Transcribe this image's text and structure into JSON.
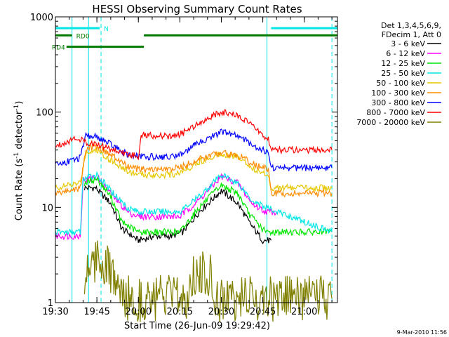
{
  "chart_data": {
    "type": "line",
    "title": "HESSI Observing Summary Count Rates",
    "xlabel": "Start Time (26-Jun-09 19:29:42)",
    "ylabel_pre": "Count Rate (s",
    "ylabel_sup": "-1",
    "ylabel_mid": " detector",
    "ylabel_sup2": "-1",
    "ylabel_post": ")",
    "y_scale": "log",
    "ylim": [
      1,
      1000
    ],
    "xlim_min": [
      1170,
      1272
    ],
    "x_ticks": [
      {
        "m": 1170,
        "label": "19:30"
      },
      {
        "m": 1185,
        "label": "19:45"
      },
      {
        "m": 1200,
        "label": "20:00"
      },
      {
        "m": 1215,
        "label": "20:15"
      },
      {
        "m": 1230,
        "label": "20:30"
      },
      {
        "m": 1245,
        "label": "20:45"
      },
      {
        "m": 1260,
        "label": "21:00"
      }
    ],
    "y_ticks": [
      {
        "v": 1,
        "label": "1"
      },
      {
        "v": 10,
        "label": "10"
      },
      {
        "v": 100,
        "label": "100"
      },
      {
        "v": 1000,
        "label": "1000"
      }
    ],
    "legend_header": [
      "Det 1,3,4,5,6,9,",
      "FDecim 1, Att 0"
    ],
    "timestamp": "9-Mar-2010 11:56",
    "series": [
      {
        "name": "3 - 6 keV",
        "color": "#000000",
        "pts": [
          [
            1180.5,
            16
          ],
          [
            1184.5,
            16
          ],
          [
            1190,
            11
          ],
          [
            1194,
            6
          ],
          [
            1200,
            4.5
          ],
          [
            1206,
            5
          ],
          [
            1212,
            5
          ],
          [
            1216,
            5.5
          ],
          [
            1222,
            9
          ],
          [
            1230,
            15
          ],
          [
            1236,
            11
          ],
          [
            1240,
            7
          ],
          [
            1245,
            4.5
          ],
          [
            1248,
            4.5
          ]
        ]
      },
      {
        "name": "6 - 12 keV",
        "color": "#ff00ff",
        "pts": [
          [
            1170,
            5
          ],
          [
            1179,
            5
          ],
          [
            1180,
            19
          ],
          [
            1185,
            21
          ],
          [
            1190,
            14
          ],
          [
            1196,
            9
          ],
          [
            1200,
            8
          ],
          [
            1215,
            8
          ],
          [
            1222,
            12
          ],
          [
            1230,
            21
          ],
          [
            1236,
            18
          ],
          [
            1241,
            11
          ],
          [
            1246,
            9
          ],
          [
            1250,
            9
          ]
        ]
      },
      {
        "name": "12 - 25 keV",
        "color": "#00e600",
        "pts": [
          [
            1180.5,
            18
          ],
          [
            1185,
            20
          ],
          [
            1190,
            13
          ],
          [
            1194,
            7
          ],
          [
            1200,
            5.5
          ],
          [
            1215,
            5.5
          ],
          [
            1222,
            10
          ],
          [
            1230,
            17
          ],
          [
            1236,
            14
          ],
          [
            1240,
            8.5
          ],
          [
            1246,
            5.5
          ],
          [
            1270,
            5.5
          ]
        ]
      },
      {
        "name": "25 - 50 keV",
        "color": "#00e6e6",
        "pts": [
          [
            1170,
            5.5
          ],
          [
            1179,
            5.5
          ],
          [
            1180,
            20
          ],
          [
            1185,
            22
          ],
          [
            1190,
            15
          ],
          [
            1196,
            10
          ],
          [
            1200,
            9
          ],
          [
            1215,
            9
          ],
          [
            1222,
            13
          ],
          [
            1230,
            22
          ],
          [
            1236,
            18
          ],
          [
            1241,
            12
          ],
          [
            1246,
            10
          ],
          [
            1270,
            5.5
          ]
        ]
      },
      {
        "name": "50 - 100 keV",
        "color": "#e6c800",
        "pts": [
          [
            1170,
            16
          ],
          [
            1179,
            18
          ],
          [
            1181,
            38
          ],
          [
            1185,
            40
          ],
          [
            1191,
            30
          ],
          [
            1196,
            24
          ],
          [
            1200,
            22
          ],
          [
            1212,
            22
          ],
          [
            1216,
            24
          ],
          [
            1222,
            30
          ],
          [
            1230,
            37
          ],
          [
            1237,
            33
          ],
          [
            1242,
            25
          ],
          [
            1247,
            22
          ],
          [
            1248,
            16
          ],
          [
            1270,
            16
          ]
        ]
      },
      {
        "name": "100 - 300 keV",
        "color": "#ff8c00",
        "pts": [
          [
            1170,
            14
          ],
          [
            1179,
            16
          ],
          [
            1181,
            42
          ],
          [
            1185,
            44
          ],
          [
            1191,
            34
          ],
          [
            1196,
            27
          ],
          [
            1200,
            25
          ],
          [
            1212,
            25
          ],
          [
            1216,
            27
          ],
          [
            1222,
            32
          ],
          [
            1230,
            38
          ],
          [
            1237,
            34
          ],
          [
            1242,
            28
          ],
          [
            1247,
            25
          ],
          [
            1248,
            14
          ],
          [
            1270,
            14
          ]
        ]
      },
      {
        "name": "300 - 800 keV",
        "color": "#0000ff",
        "pts": [
          [
            1170,
            28
          ],
          [
            1179,
            33
          ],
          [
            1181,
            56
          ],
          [
            1185,
            55
          ],
          [
            1191,
            44
          ],
          [
            1196,
            36
          ],
          [
            1200,
            34
          ],
          [
            1212,
            34
          ],
          [
            1216,
            37
          ],
          [
            1222,
            48
          ],
          [
            1230,
            62
          ],
          [
            1237,
            55
          ],
          [
            1242,
            44
          ],
          [
            1247,
            38
          ],
          [
            1248,
            26
          ],
          [
            1270,
            26
          ]
        ]
      },
      {
        "name": "800 - 7000 keV",
        "color": "#ff0000",
        "pts": [
          [
            1170,
            44
          ],
          [
            1178,
            54
          ],
          [
            1181,
            48
          ],
          [
            1185,
            46
          ],
          [
            1191,
            40
          ],
          [
            1196,
            36
          ],
          [
            1200,
            34
          ],
          [
            1201,
            58
          ],
          [
            1212,
            55
          ],
          [
            1216,
            60
          ],
          [
            1222,
            78
          ],
          [
            1230,
            100
          ],
          [
            1237,
            90
          ],
          [
            1242,
            68
          ],
          [
            1247,
            52
          ],
          [
            1248,
            40
          ],
          [
            1270,
            40
          ]
        ]
      },
      {
        "name": "7000 - 20000 keV",
        "color": "#808000",
        "pts": [
          [
            1180.5,
            1.2
          ],
          [
            1181,
            2.2
          ],
          [
            1183,
            2.8
          ],
          [
            1187,
            2.8
          ],
          [
            1190,
            2
          ],
          [
            1192,
            1.5
          ],
          [
            1194,
            1.1
          ],
          [
            1218,
            1.1
          ],
          [
            1219,
            2
          ],
          [
            1226,
            2
          ],
          [
            1227,
            1.1
          ],
          [
            1270,
            1.1
          ]
        ]
      }
    ],
    "status_lines": [
      {
        "label": "N",
        "color": "#00e6e6",
        "segments": [
          [
            1170,
            1186
          ]
        ],
        "y_frac": 0.02
      },
      {
        "label": "",
        "color": "#00e6e6",
        "segments": [
          [
            1248,
            1272
          ]
        ],
        "y_frac": 0.02
      },
      {
        "label": "RD0",
        "color": "#007a00",
        "segments": [
          [
            1170,
            1176
          ],
          [
            1202,
            1272
          ]
        ],
        "y_frac": 0.045
      },
      {
        "label": "RD4",
        "color": "#007a00",
        "segments": [
          [
            1174,
            1202
          ]
        ],
        "y_frac": 0.085
      }
    ],
    "vlines_solid": [
      1176,
      1182,
      1246.5
    ],
    "vlines_dashed": [
      1186.5,
      1270
    ],
    "vline_color": "#00e6e6"
  }
}
